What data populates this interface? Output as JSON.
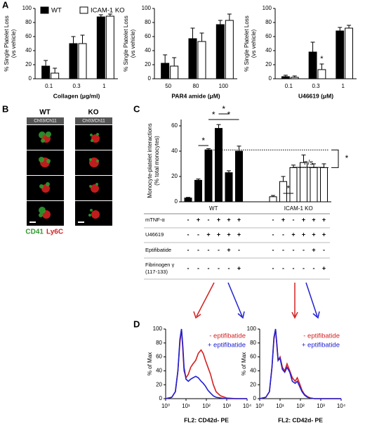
{
  "panels": [
    "A",
    "B",
    "C",
    "D"
  ],
  "images": {
    "columns": [
      "WT",
      "KO"
    ],
    "channel": "Ch03/Ch11",
    "stains": [
      "CD41",
      "Ly6C"
    ]
  },
  "table": {
    "rows": [
      {
        "label": [
          "mTNF-α"
        ],
        "cells": [
          "-",
          "+",
          "-",
          "+",
          "+",
          "+",
          "-",
          "+",
          "-",
          "+",
          "+",
          "+"
        ]
      },
      {
        "label": [
          "U46619"
        ],
        "cells": [
          "-",
          "-",
          "+",
          "+",
          "+",
          "+",
          "-",
          "-",
          "+",
          "+",
          "+",
          "+"
        ]
      },
      {
        "label": [
          "Eptifibatide"
        ],
        "cells": [
          "-",
          "-",
          "-",
          "-",
          "+",
          "-",
          "-",
          "-",
          "-",
          "-",
          "+",
          "-"
        ]
      },
      {
        "label": [
          "Fibrinogen γ",
          "(117-133)"
        ],
        "cells": [
          "-",
          "-",
          "-",
          "-",
          "-",
          "+",
          "-",
          "-",
          "-",
          "-",
          "-",
          "+"
        ]
      }
    ]
  },
  "chart_data": [
    {
      "type": "bar",
      "ylabel": [
        "% Single Platelet Loss",
        "(vs vehicle)"
      ],
      "xlabel": "Collagen (μg/ml)",
      "categories": [
        "0.1",
        "0.3",
        "1"
      ],
      "legend": "top",
      "series": [
        {
          "name": "WT",
          "color": "#000000",
          "values": [
            18,
            50,
            88
          ],
          "errors": [
            8,
            10,
            3
          ]
        },
        {
          "name": "ICAM-1 KO",
          "color": "#ffffff",
          "values": [
            8,
            50,
            89
          ],
          "errors": [
            7,
            12,
            3
          ]
        }
      ],
      "ylim": [
        0,
        100
      ],
      "yticks": [
        0,
        20,
        40,
        60,
        80,
        100
      ]
    },
    {
      "type": "bar",
      "ylabel": [
        "% Single Platelet Loss",
        "(vs vehicle)"
      ],
      "xlabel": "PAR4 amide (μM)",
      "categories": [
        "50",
        "80",
        "100"
      ],
      "series": [
        {
          "name": "WT",
          "color": "#000000",
          "values": [
            22,
            57,
            77
          ],
          "errors": [
            12,
            15,
            6
          ]
        },
        {
          "name": "ICAM-1 KO",
          "color": "#ffffff",
          "values": [
            18,
            53,
            83
          ],
          "errors": [
            12,
            12,
            9
          ]
        }
      ],
      "ylim": [
        0,
        100
      ],
      "yticks": [
        0,
        20,
        40,
        60,
        80,
        100
      ]
    },
    {
      "type": "bar",
      "ylabel": [
        "% Single Platelet Loss",
        "(vs vehicle)"
      ],
      "xlabel": "U46619 (μM)",
      "categories": [
        "0.1",
        "0.3",
        "1"
      ],
      "annotations": [
        "*"
      ],
      "series": [
        {
          "name": "WT",
          "color": "#000000",
          "values": [
            3,
            38,
            68
          ],
          "errors": [
            2,
            14,
            5
          ]
        },
        {
          "name": "ICAM-1 KO",
          "color": "#ffffff",
          "values": [
            2,
            13,
            72
          ],
          "errors": [
            2,
            8,
            4
          ]
        }
      ],
      "ylim": [
        0,
        100
      ],
      "yticks": [
        0,
        20,
        40,
        60,
        80,
        100
      ]
    },
    {
      "type": "bar",
      "ylabel": [
        "Monocyte-platelet interactions",
        "(% total monocytes)"
      ],
      "groups": [
        "WT",
        "ICAM-1 KO"
      ],
      "values": [
        3,
        17,
        41,
        58,
        23,
        40,
        4,
        16,
        27,
        31,
        27,
        27
      ],
      "errors": [
        0.5,
        1,
        1,
        3,
        1.5,
        4,
        1,
        4,
        2,
        6,
        3,
        3
      ],
      "colors": [
        "#000000",
        "#000000",
        "#000000",
        "#000000",
        "#000000",
        "#000000",
        "#ffffff",
        "#ffffff",
        "#ffffff",
        "#ffffff",
        "#ffffff",
        "#ffffff"
      ],
      "annotations": [
        "*",
        "*",
        "*",
        "*",
        "*",
        "n/s",
        "*"
      ],
      "ylim": [
        0,
        65
      ],
      "yticks": [
        0,
        20,
        40,
        60
      ]
    },
    {
      "type": "line",
      "ylabel": [
        "% of Max"
      ],
      "xlabel": "FL2: CD42d- PE",
      "xscale": "log",
      "x": [
        1,
        2,
        3,
        4,
        5,
        6,
        7,
        8,
        10,
        13,
        17,
        22,
        30,
        40,
        55,
        70,
        90,
        120,
        160,
        220,
        300,
        500,
        1000,
        3000,
        10000
      ],
      "series": [
        {
          "name": "- eptifibatide",
          "color": "#d42020",
          "values": [
            0,
            2,
            10,
            40,
            80,
            100,
            70,
            40,
            30,
            35,
            45,
            50,
            55,
            65,
            70,
            65,
            55,
            45,
            35,
            20,
            10,
            4,
            1,
            0,
            0
          ]
        },
        {
          "name": "+ eptifibatide",
          "color": "#2020d0",
          "values": [
            0,
            2,
            10,
            40,
            85,
            100,
            75,
            45,
            28,
            25,
            28,
            30,
            32,
            30,
            25,
            22,
            18,
            12,
            8,
            4,
            2,
            1,
            0,
            0,
            0
          ]
        }
      ],
      "xlim": [
        1,
        10000
      ],
      "xticks": [
        {
          "value": 1,
          "label": "10⁰"
        },
        {
          "value": 10,
          "label": "10¹"
        },
        {
          "value": 100,
          "label": "10²"
        },
        {
          "value": 1000,
          "label": "10³"
        },
        {
          "value": 10000,
          "label": "10⁴"
        }
      ],
      "ylim": [
        0,
        100
      ],
      "yticks": [
        0,
        20,
        40,
        60,
        80,
        100
      ]
    },
    {
      "type": "line",
      "ylabel": [
        "% of Max"
      ],
      "xlabel": "FL2: CD42d- PE",
      "xscale": "log",
      "x": [
        1,
        2,
        3,
        4,
        5,
        6,
        7,
        8,
        10,
        13,
        17,
        22,
        30,
        40,
        55,
        70,
        90,
        120,
        160,
        220,
        300,
        500,
        1000,
        3000,
        10000
      ],
      "series": [
        {
          "name": "- eptifibatide",
          "color": "#d42020",
          "values": [
            0,
            2,
            10,
            45,
            85,
            100,
            75,
            55,
            60,
            45,
            40,
            50,
            40,
            30,
            25,
            30,
            22,
            12,
            6,
            3,
            1,
            0,
            0,
            0,
            0
          ]
        },
        {
          "name": "+ eptifibatide",
          "color": "#2020d0",
          "values": [
            0,
            2,
            10,
            45,
            88,
            100,
            78,
            55,
            58,
            42,
            38,
            45,
            38,
            25,
            22,
            25,
            18,
            10,
            5,
            2,
            1,
            0,
            0,
            0,
            0
          ]
        }
      ],
      "xlim": [
        1,
        10000
      ],
      "xticks": [
        {
          "value": 1,
          "label": "10⁰"
        },
        {
          "value": 10,
          "label": "10¹"
        },
        {
          "value": 100,
          "label": "10²"
        },
        {
          "value": 1000,
          "label": "10³"
        },
        {
          "value": 10000,
          "label": "10⁴"
        }
      ],
      "ylim": [
        0,
        100
      ],
      "yticks": [
        0,
        20,
        40,
        60,
        80,
        100
      ]
    }
  ]
}
